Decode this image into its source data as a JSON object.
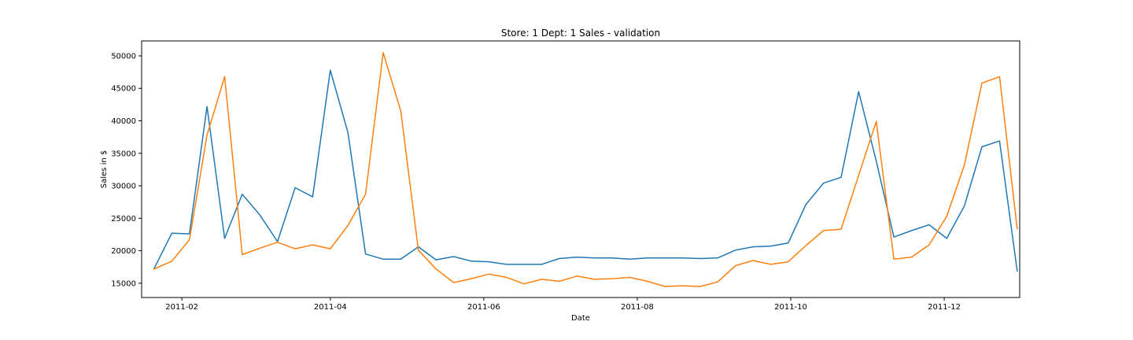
{
  "chart_data": {
    "type": "line",
    "title": "Store: 1 Dept: 1 Sales - validation",
    "xlabel": "Date",
    "ylabel": "Sales in $",
    "grid": false,
    "legend": "none",
    "xlim": [
      "2011-01-16",
      "2011-12-31"
    ],
    "ylim": [
      12800,
      52300
    ],
    "x_ticks": [
      {
        "date": "2011-02-01",
        "label": "2011-02"
      },
      {
        "date": "2011-04-01",
        "label": "2011-04"
      },
      {
        "date": "2011-06-01",
        "label": "2011-06"
      },
      {
        "date": "2011-08-01",
        "label": "2011-08"
      },
      {
        "date": "2011-10-01",
        "label": "2011-10"
      },
      {
        "date": "2011-12-01",
        "label": "2011-12"
      }
    ],
    "y_ticks": [
      15000,
      20000,
      25000,
      30000,
      35000,
      40000,
      45000,
      50000
    ],
    "x": [
      "2011-01-21",
      "2011-01-28",
      "2011-02-04",
      "2011-02-11",
      "2011-02-18",
      "2011-02-25",
      "2011-03-04",
      "2011-03-11",
      "2011-03-18",
      "2011-03-25",
      "2011-04-01",
      "2011-04-08",
      "2011-04-15",
      "2011-04-22",
      "2011-04-29",
      "2011-05-06",
      "2011-05-13",
      "2011-05-20",
      "2011-05-27",
      "2011-06-03",
      "2011-06-10",
      "2011-06-17",
      "2011-06-24",
      "2011-07-01",
      "2011-07-08",
      "2011-07-15",
      "2011-07-22",
      "2011-07-29",
      "2011-08-05",
      "2011-08-12",
      "2011-08-19",
      "2011-08-26",
      "2011-09-02",
      "2011-09-09",
      "2011-09-16",
      "2011-09-23",
      "2011-09-30",
      "2011-10-07",
      "2011-10-14",
      "2011-10-21",
      "2011-10-28",
      "2011-11-04",
      "2011-11-11",
      "2011-11-18",
      "2011-11-25",
      "2011-12-02",
      "2011-12-09",
      "2011-12-16",
      "2011-12-23",
      "2011-12-30"
    ],
    "series": [
      {
        "color": "#1f77b4",
        "values": [
          17300,
          22700,
          22600,
          42200,
          21900,
          28700,
          25500,
          21400,
          29700,
          28300,
          47800,
          38200,
          19500,
          18700,
          18700,
          20600,
          18600,
          19100,
          18400,
          18300,
          17900,
          17900,
          17900,
          18800,
          19000,
          18900,
          18900,
          18700,
          18900,
          18900,
          18900,
          18800,
          18900,
          20100,
          20600,
          20700,
          21200,
          27100,
          30400,
          31300,
          44500,
          33800,
          22100,
          23100,
          24000,
          21900,
          26900,
          36000,
          36900,
          16900
        ]
      },
      {
        "color": "#ff7f0e",
        "values": [
          17200,
          18400,
          21700,
          37800,
          46800,
          19400,
          20400,
          21300,
          20300,
          20900,
          20300,
          23900,
          28700,
          50500,
          41500,
          20100,
          17200,
          15100,
          15700,
          16400,
          15900,
          14900,
          15600,
          15300,
          16100,
          15600,
          15700,
          15900,
          15300,
          14500,
          14600,
          14500,
          15200,
          17700,
          18500,
          17900,
          18300,
          20800,
          23100,
          23300,
          31600,
          39900,
          18700,
          19000,
          20900,
          25300,
          33200,
          45800,
          46800,
          23400
        ]
      }
    ]
  }
}
